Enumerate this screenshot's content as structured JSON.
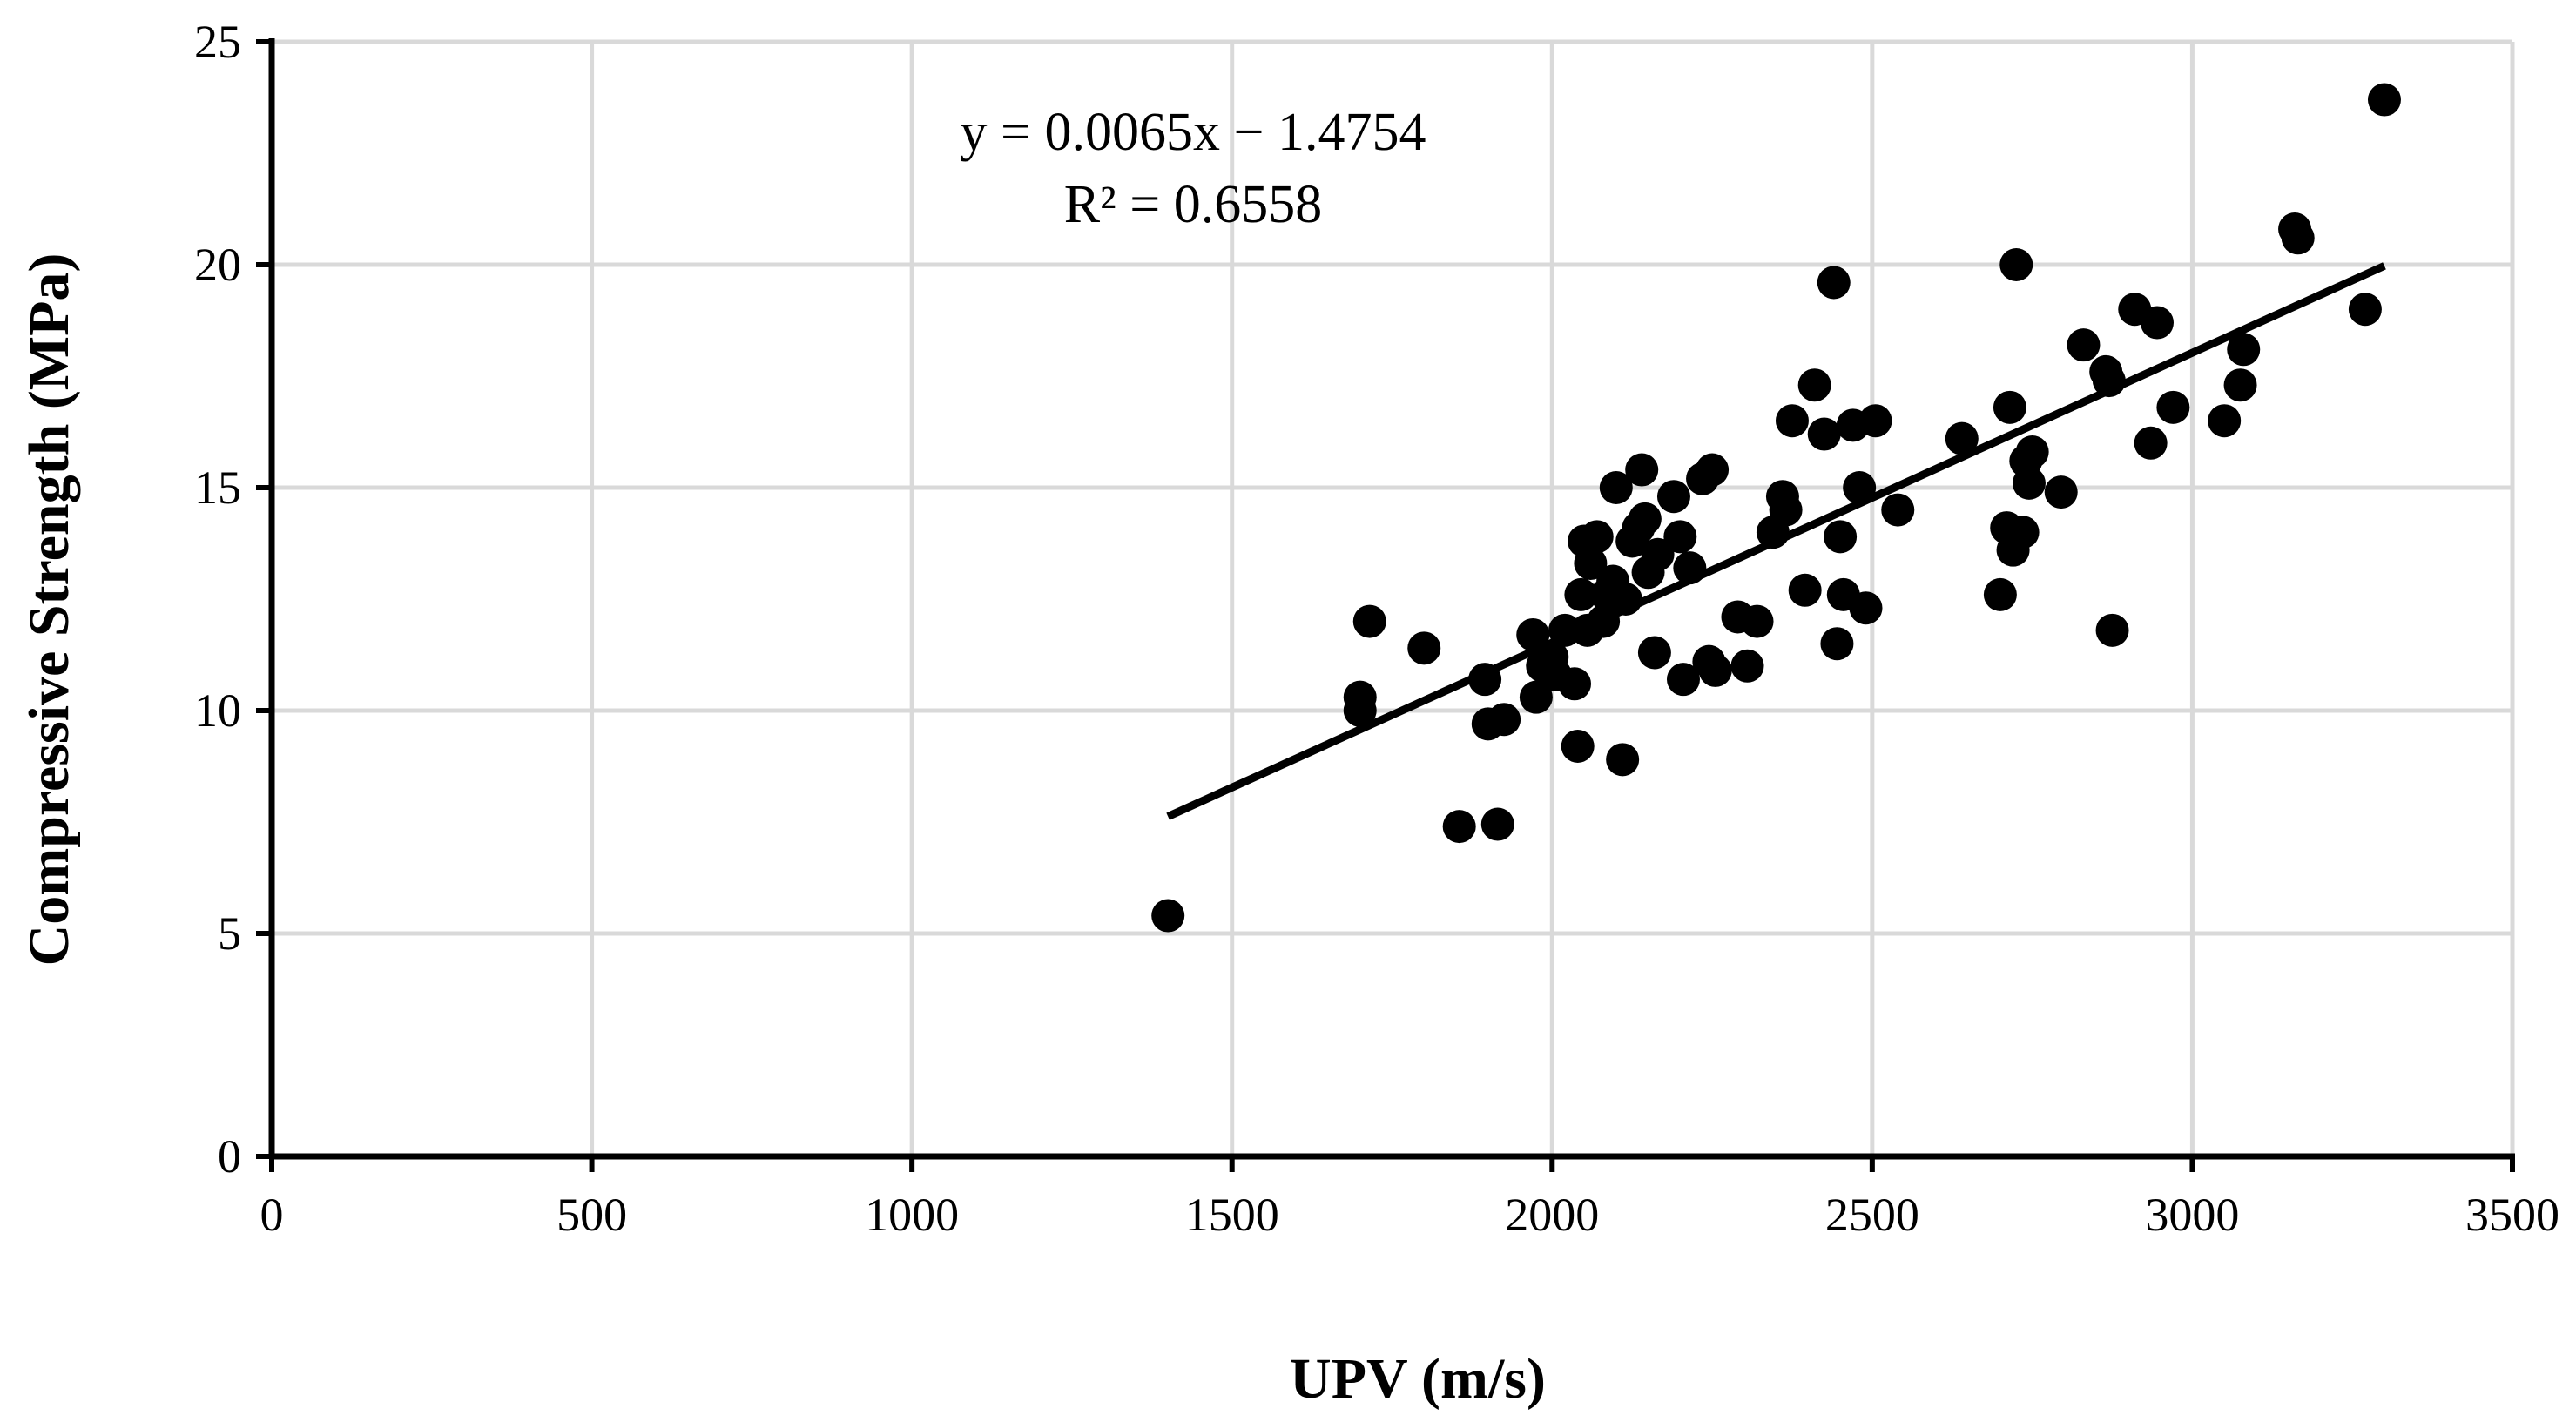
{
  "chart_data": {
    "type": "scatter",
    "xlabel": "UPV (m/s)",
    "ylabel": "Compressive Strength (MPa)",
    "xlim": [
      0,
      3500
    ],
    "ylim": [
      0,
      25
    ],
    "xticks": [
      0,
      500,
      1000,
      1500,
      2000,
      2500,
      3000,
      3500
    ],
    "yticks": [
      0,
      5,
      10,
      15,
      20,
      25
    ],
    "grid": true,
    "legend": "none",
    "colors": {
      "points": "#000000",
      "trendline": "#000000",
      "grid": "#d9d9d9"
    },
    "annotations": {
      "equation": "y = 0.0065x − 1.4754",
      "r2": "R² = 0.6558"
    },
    "trendline": {
      "slope": 0.0065,
      "intercept": -1.4754,
      "x_range": [
        1400,
        3300
      ]
    },
    "points": [
      [
        1400,
        5.4
      ],
      [
        1700,
        10.0
      ],
      [
        1700,
        10.3
      ],
      [
        1715,
        12.0
      ],
      [
        1800,
        11.4
      ],
      [
        1855,
        7.4
      ],
      [
        1895,
        10.7
      ],
      [
        1900,
        9.7
      ],
      [
        1915,
        7.45
      ],
      [
        1925,
        9.8
      ],
      [
        1970,
        11.7
      ],
      [
        1975,
        10.3
      ],
      [
        1985,
        11.0
      ],
      [
        2000,
        11.2
      ],
      [
        2005,
        10.8
      ],
      [
        2020,
        11.8
      ],
      [
        2035,
        10.6
      ],
      [
        2040,
        9.2
      ],
      [
        2045,
        12.6
      ],
      [
        2050,
        13.8
      ],
      [
        2055,
        11.8
      ],
      [
        2060,
        13.3
      ],
      [
        2070,
        13.9
      ],
      [
        2080,
        12.0
      ],
      [
        2085,
        12.6
      ],
      [
        2095,
        12.9
      ],
      [
        2100,
        15.0
      ],
      [
        2110,
        8.9
      ],
      [
        2115,
        12.5
      ],
      [
        2125,
        13.8
      ],
      [
        2135,
        14.1
      ],
      [
        2140,
        15.4
      ],
      [
        2145,
        14.3
      ],
      [
        2150,
        13.1
      ],
      [
        2160,
        11.3
      ],
      [
        2165,
        13.5
      ],
      [
        2190,
        14.8
      ],
      [
        2200,
        13.9
      ],
      [
        2205,
        10.7
      ],
      [
        2215,
        13.2
      ],
      [
        2235,
        15.2
      ],
      [
        2245,
        11.1
      ],
      [
        2250,
        15.4
      ],
      [
        2255,
        10.9
      ],
      [
        2290,
        12.1
      ],
      [
        2305,
        11.0
      ],
      [
        2320,
        12.0
      ],
      [
        2345,
        14.0
      ],
      [
        2360,
        14.8
      ],
      [
        2365,
        14.5
      ],
      [
        2375,
        16.5
      ],
      [
        2395,
        12.7
      ],
      [
        2410,
        17.3
      ],
      [
        2425,
        16.2
      ],
      [
        2440,
        19.6
      ],
      [
        2445,
        11.5
      ],
      [
        2450,
        13.9
      ],
      [
        2455,
        12.6
      ],
      [
        2470,
        16.4
      ],
      [
        2480,
        15.0
      ],
      [
        2490,
        12.3
      ],
      [
        2505,
        16.5
      ],
      [
        2540,
        14.5
      ],
      [
        2640,
        16.1
      ],
      [
        2700,
        12.6
      ],
      [
        2710,
        14.1
      ],
      [
        2715,
        16.8
      ],
      [
        2720,
        13.6
      ],
      [
        2725,
        20.0
      ],
      [
        2735,
        14.0
      ],
      [
        2740,
        15.6
      ],
      [
        2745,
        15.1
      ],
      [
        2750,
        15.8
      ],
      [
        2795,
        14.9
      ],
      [
        2830,
        18.2
      ],
      [
        2865,
        17.6
      ],
      [
        2870,
        17.4
      ],
      [
        2875,
        11.8
      ],
      [
        2910,
        19.0
      ],
      [
        2935,
        16.0
      ],
      [
        2945,
        18.7
      ],
      [
        2970,
        16.8
      ],
      [
        3050,
        16.5
      ],
      [
        3075,
        17.3
      ],
      [
        3080,
        18.1
      ],
      [
        3160,
        20.8
      ],
      [
        3165,
        20.6
      ],
      [
        3270,
        19.0
      ],
      [
        3300,
        23.7
      ]
    ]
  }
}
